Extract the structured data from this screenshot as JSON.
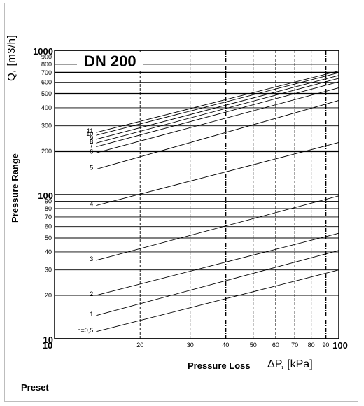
{
  "chart_data": {
    "type": "line",
    "title": "DN 200",
    "xlabel_text": "Pressure Loss",
    "xlabel_symbol": "ΔP, [kPa]",
    "ylabel_text": "Pressure Range",
    "ylabel_symbol": "Q, [m3/h]",
    "footer": "Preset",
    "x_scale": "log",
    "y_scale": "log",
    "xlim": [
      10,
      100
    ],
    "ylim": [
      10,
      1000
    ],
    "grid": true,
    "x_ticks": [
      "10",
      "20",
      "30",
      "40",
      "50",
      "60",
      "70",
      "80",
      "90",
      "100"
    ],
    "x_tick_values": [
      10,
      20,
      30,
      40,
      50,
      60,
      70,
      80,
      90,
      100
    ],
    "y_ticks_major": [
      "10",
      "100",
      "1000"
    ],
    "y_ticks_minor": [
      "20",
      "30",
      "40",
      "50",
      "60",
      "70",
      "80",
      "90",
      "200",
      "300",
      "400",
      "500",
      "600",
      "700",
      "800",
      "900"
    ],
    "y_tick_values_major": [
      10,
      100,
      1000
    ],
    "y_tick_values_minor": [
      20,
      30,
      40,
      50,
      60,
      70,
      80,
      90,
      200,
      300,
      400,
      500,
      600,
      700,
      800,
      900
    ],
    "series": [
      {
        "name": "n=0,5",
        "x": [
          14,
          100
        ],
        "y": [
          11.2,
          30
        ]
      },
      {
        "name": "1",
        "x": [
          14,
          100
        ],
        "y": [
          14.5,
          41
        ]
      },
      {
        "name": "2",
        "x": [
          14,
          100
        ],
        "y": [
          20,
          54
        ]
      },
      {
        "name": "3",
        "x": [
          14,
          100
        ],
        "y": [
          35,
          98
        ]
      },
      {
        "name": "4",
        "x": [
          14,
          100
        ],
        "y": [
          84,
          230
        ]
      },
      {
        "name": "5",
        "x": [
          14,
          100
        ],
        "y": [
          150,
          450
        ]
      },
      {
        "name": "6",
        "x": [
          14,
          100
        ],
        "y": [
          195,
          550
        ]
      },
      {
        "name": "7",
        "x": [
          14,
          100
        ],
        "y": [
          215,
          605
        ]
      },
      {
        "name": "8",
        "x": [
          14,
          100
        ],
        "y": [
          228,
          640
        ]
      },
      {
        "name": "9",
        "x": [
          14,
          100
        ],
        "y": [
          242,
          670
        ]
      },
      {
        "name": "10",
        "x": [
          14,
          100
        ],
        "y": [
          258,
          700
        ]
      },
      {
        "name": "11",
        "x": [
          14,
          100
        ],
        "y": [
          270,
          720
        ]
      }
    ]
  }
}
